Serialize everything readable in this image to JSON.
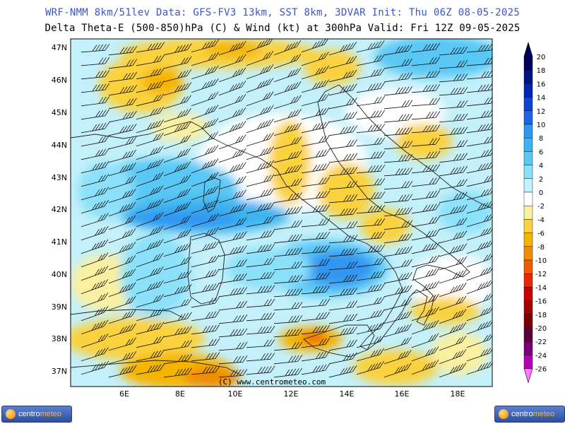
{
  "header": {
    "line1": "WRF-NMM 8km/51lev  Data: GFS-FV3 13km, SST 8km, 3DVAR  Init: Thu 06Z 08-05-2025",
    "line2": "Delta Theta-E (500-850)hPa (C) & Wind (kt) at 300hPa   Valid: Fri 12Z 09-05-2025"
  },
  "map": {
    "credit": "(C) www.centrometeo.com",
    "lat_labels": [
      "47N",
      "46N",
      "45N",
      "44N",
      "43N",
      "42N",
      "41N",
      "40N",
      "39N",
      "38N",
      "37N"
    ],
    "lon_labels": [
      "6E",
      "8E",
      "10E",
      "12E",
      "14E",
      "16E",
      "18E"
    ]
  },
  "colorbar": {
    "labels": [
      "20",
      "18",
      "16",
      "14",
      "12",
      "10",
      "8",
      "6",
      "4",
      "2",
      "0",
      "-2",
      "-4",
      "-6",
      "-8",
      "-10",
      "-12",
      "-14",
      "-16",
      "-18",
      "-20",
      "-22",
      "-24",
      "-26"
    ],
    "colors": [
      "#00005a",
      "#001482",
      "#0028b4",
      "#0a46d2",
      "#1e64e6",
      "#3296f0",
      "#3cb4f0",
      "#5ac8f5",
      "#8ce1fa",
      "#c3f0fa",
      "#ffffff",
      "#faf0a0",
      "#fad23c",
      "#f5b400",
      "#f08c00",
      "#f05a00",
      "#e62800",
      "#c80000",
      "#a00000",
      "#780000",
      "#5a003c",
      "#780078",
      "#b400b4",
      "#ff78ff"
    ]
  },
  "footer": {
    "logo_left": {
      "part1": "centro",
      "part2": "meteo"
    },
    "logo_right": {
      "part1": "centro",
      "part2": "meteo"
    }
  }
}
